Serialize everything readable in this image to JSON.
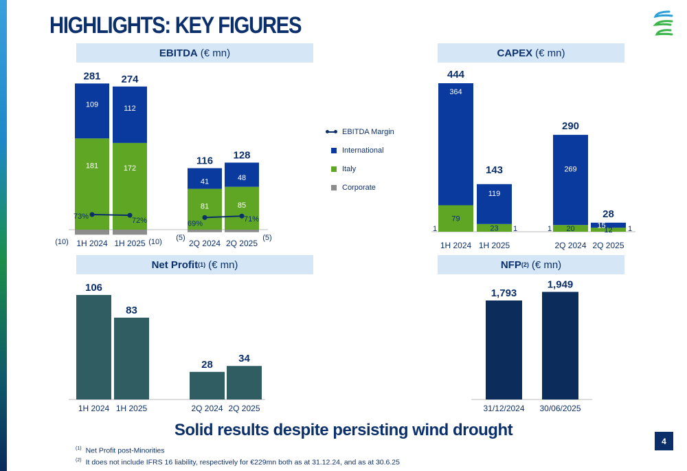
{
  "page": {
    "title": "HIGHLIGHTS: KEY FIGURES",
    "headline": "Solid results despite persisting wind drought",
    "page_number": "4",
    "footnotes": [
      {
        "mark": "(1)",
        "text": "Net Profit post-Minorities"
      },
      {
        "mark": "(2)",
        "text": "It does not include IFRS 16 liability, respectively for €229mn both as at 31.12.24, and as at 30.6.25"
      }
    ]
  },
  "sections": {
    "ebitda": {
      "label": "EBITDA",
      "unit": "(€ mn)"
    },
    "capex": {
      "label": "CAPEX",
      "unit": "(€ mn)"
    },
    "net_profit": {
      "label": "Net Profit",
      "sup": "(1)",
      "unit": "(€ mn)"
    },
    "nfp": {
      "label": "NFP",
      "sup": "(2)",
      "unit": "(€ mn)"
    }
  },
  "legend": [
    {
      "label": "EBITDA Margin",
      "kind": "line",
      "color": "#0b2f6a"
    },
    {
      "label": "International",
      "kind": "box",
      "color": "#0a3a9e"
    },
    {
      "label": "Italy",
      "kind": "box",
      "color": "#5ea623"
    },
    {
      "label": "Corporate",
      "kind": "box",
      "color": "#8c8c8c"
    }
  ],
  "colors": {
    "international": "#0a3a9e",
    "italy": "#5ea623",
    "corporate": "#8c8c8c",
    "net_profit": "#2f5d62",
    "nfp": "#0c2d5c",
    "text": "#0b2f6a"
  },
  "chart_data": [
    {
      "id": "ebitda",
      "type": "bar",
      "title": "EBITDA (€ mn)",
      "stacked": true,
      "categories": [
        "1H 2024",
        "1H 2025",
        "2Q 2024",
        "2Q 2025"
      ],
      "totals": [
        "281",
        "274",
        "116",
        "128"
      ],
      "series": [
        {
          "name": "Corporate",
          "values": [
            -10,
            -10,
            -5,
            -5
          ],
          "labels": [
            "(10)",
            "(10)",
            "(5)",
            "(5)"
          ]
        },
        {
          "name": "Italy",
          "values": [
            181,
            172,
            81,
            85
          ]
        },
        {
          "name": "International",
          "values": [
            109,
            112,
            41,
            48
          ]
        }
      ],
      "ebitda_margin": {
        "name": "EBITDA Margin",
        "values": [
          73,
          72,
          69,
          71
        ],
        "labels": [
          "73%",
          "72%",
          "69%",
          "71%"
        ]
      }
    },
    {
      "id": "capex",
      "type": "bar",
      "title": "CAPEX (€ mn)",
      "stacked": true,
      "categories": [
        "1H 2024",
        "1H 2025",
        "2Q 2024",
        "2Q 2025"
      ],
      "totals": [
        "444",
        "143",
        "290",
        "28"
      ],
      "series": [
        {
          "name": "Italy",
          "values": [
            79,
            23,
            20,
            12
          ]
        },
        {
          "name": "International",
          "values": [
            364,
            119,
            269,
            15
          ]
        },
        {
          "name": "Corporate",
          "values": [
            1,
            1,
            1,
            1
          ]
        }
      ]
    },
    {
      "id": "net_profit",
      "type": "bar",
      "title": "Net Profit (€ mn)",
      "categories": [
        "1H 2024",
        "1H 2025",
        "2Q 2024",
        "2Q 2025"
      ],
      "values": [
        106,
        83,
        28,
        34
      ]
    },
    {
      "id": "nfp",
      "type": "bar",
      "title": "NFP (€ mn)",
      "categories": [
        "31/12/2024",
        "30/06/2025"
      ],
      "values": [
        1793,
        1949
      ],
      "value_labels": [
        "1,793",
        "1,949"
      ]
    }
  ]
}
